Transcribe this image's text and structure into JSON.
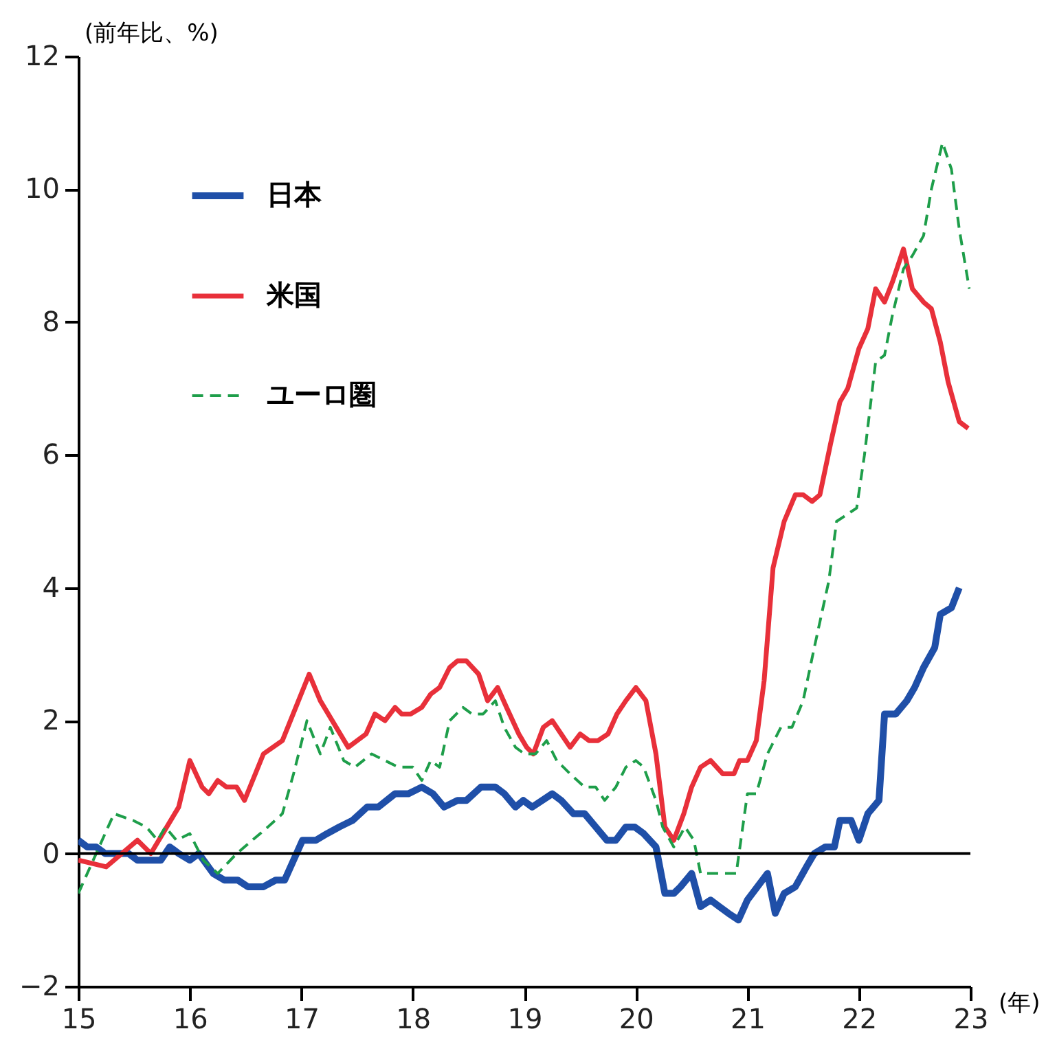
{
  "chart_data": {
    "type": "line",
    "ylabel": "(前年比、%)",
    "xlabel": "(年)",
    "xlim": [
      15,
      23
    ],
    "xticks": [
      15,
      16,
      17,
      18,
      19,
      20,
      21,
      22,
      23
    ],
    "ylim": [
      -2,
      12
    ],
    "yticks": [
      -2,
      0,
      2,
      4,
      6,
      8,
      10,
      12
    ],
    "grid": false,
    "legend": "top left",
    "marker": "none",
    "ref_lines": [
      {
        "axis": "y",
        "value": 0,
        "color": "#000000",
        "line_style": "solid"
      }
    ],
    "series": [
      {
        "name": "日本",
        "color": "#1f4fa8",
        "line_style": "solid",
        "x": [
          15.0,
          15.08,
          15.16,
          15.24,
          15.45,
          15.53,
          15.74,
          15.82,
          15.9,
          16.0,
          16.08,
          16.21,
          16.31,
          16.43,
          16.52,
          16.66,
          16.77,
          16.85,
          16.93,
          17.01,
          17.13,
          17.23,
          17.34,
          17.46,
          17.59,
          17.69,
          17.84,
          17.96,
          18.08,
          18.18,
          18.28,
          18.4,
          18.48,
          18.61,
          18.74,
          18.82,
          18.92,
          18.99,
          19.07,
          19.25,
          19.33,
          19.44,
          19.54,
          19.64,
          19.74,
          19.82,
          19.91,
          19.99,
          20.07,
          20.18,
          20.26,
          20.34,
          20.4,
          20.5,
          20.58,
          20.67,
          20.75,
          20.83,
          20.92,
          21.0,
          21.18,
          21.25,
          21.33,
          21.43,
          21.53,
          21.6,
          21.7,
          21.78,
          21.83,
          21.93,
          22.0,
          22.08,
          22.18,
          22.23,
          22.33,
          22.43,
          22.5,
          22.58,
          22.68,
          22.73,
          22.83,
          22.9
        ],
        "values": [
          0.2,
          0.1,
          0.1,
          0.0,
          0.0,
          -0.1,
          -0.1,
          0.1,
          0.0,
          -0.1,
          0.0,
          -0.3,
          -0.4,
          -0.4,
          -0.5,
          -0.5,
          -0.4,
          -0.4,
          -0.1,
          0.2,
          0.2,
          0.3,
          0.4,
          0.5,
          0.7,
          0.7,
          0.9,
          0.9,
          1.0,
          0.9,
          0.7,
          0.8,
          0.8,
          1.0,
          1.0,
          0.9,
          0.7,
          0.8,
          0.7,
          0.9,
          0.8,
          0.6,
          0.6,
          0.4,
          0.2,
          0.2,
          0.4,
          0.4,
          0.3,
          0.1,
          -0.6,
          -0.6,
          -0.5,
          -0.3,
          -0.8,
          -0.7,
          -0.8,
          -0.9,
          -1.0,
          -0.7,
          -0.3,
          -0.9,
          -0.6,
          -0.5,
          -0.2,
          0.0,
          0.1,
          0.1,
          0.5,
          0.5,
          0.2,
          0.6,
          0.8,
          2.1,
          2.1,
          2.3,
          2.5,
          2.8,
          3.1,
          3.6,
          3.7,
          4.0
        ]
      },
      {
        "name": "米国",
        "color": "#e8303a",
        "line_style": "solid",
        "x": [
          15.0,
          15.25,
          15.53,
          15.65,
          15.9,
          16.0,
          16.11,
          16.17,
          16.25,
          16.33,
          16.42,
          16.49,
          16.66,
          16.83,
          17.07,
          17.17,
          17.42,
          17.58,
          17.66,
          17.75,
          17.84,
          17.9,
          17.98,
          18.08,
          18.16,
          18.24,
          18.33,
          18.4,
          18.48,
          18.59,
          18.67,
          18.76,
          18.84,
          18.95,
          19.02,
          19.08,
          19.17,
          19.25,
          19.33,
          19.41,
          19.5,
          19.58,
          19.66,
          19.75,
          19.83,
          19.91,
          20.0,
          20.09,
          20.18,
          20.26,
          20.34,
          20.43,
          20.5,
          20.58,
          20.67,
          20.78,
          20.88,
          20.93,
          21.0,
          21.08,
          21.15,
          21.23,
          21.33,
          21.43,
          21.5,
          21.58,
          21.65,
          21.75,
          21.83,
          21.9,
          22.0,
          22.08,
          22.15,
          22.23,
          22.3,
          22.4,
          22.48,
          22.58,
          22.65,
          22.73,
          22.8,
          22.9,
          22.98
        ],
        "values": [
          -0.1,
          -0.2,
          0.2,
          0.0,
          0.7,
          1.4,
          1.0,
          0.9,
          1.1,
          1.0,
          1.0,
          0.8,
          1.5,
          1.7,
          2.7,
          2.3,
          1.6,
          1.8,
          2.1,
          2.0,
          2.2,
          2.1,
          2.1,
          2.2,
          2.4,
          2.5,
          2.8,
          2.9,
          2.9,
          2.7,
          2.3,
          2.5,
          2.2,
          1.8,
          1.6,
          1.5,
          1.9,
          2.0,
          1.8,
          1.6,
          1.8,
          1.7,
          1.7,
          1.8,
          2.1,
          2.3,
          2.5,
          2.3,
          1.5,
          0.4,
          0.2,
          0.6,
          1.0,
          1.3,
          1.4,
          1.2,
          1.2,
          1.4,
          1.4,
          1.7,
          2.6,
          4.3,
          5.0,
          5.4,
          5.4,
          5.3,
          5.4,
          6.2,
          6.8,
          7.0,
          7.6,
          7.9,
          8.5,
          8.3,
          8.6,
          9.1,
          8.5,
          8.3,
          8.2,
          7.7,
          7.1,
          6.5,
          6.4
        ]
      },
      {
        "name": "ユーロ圏",
        "color": "#1e9e4a",
        "line_style": "dashed",
        "x": [
          15.0,
          15.16,
          15.32,
          15.49,
          15.61,
          15.71,
          15.78,
          15.88,
          16.0,
          16.12,
          16.25,
          16.42,
          16.56,
          16.7,
          16.83,
          16.93,
          17.05,
          17.17,
          17.26,
          17.38,
          17.48,
          17.63,
          17.75,
          17.87,
          18.0,
          18.08,
          18.16,
          18.24,
          18.33,
          18.45,
          18.53,
          18.63,
          18.74,
          18.82,
          18.92,
          19.0,
          19.1,
          19.2,
          19.29,
          19.41,
          19.54,
          19.64,
          19.72,
          19.82,
          19.91,
          20.0,
          20.07,
          20.18,
          20.24,
          20.34,
          20.44,
          20.52,
          20.58,
          20.7,
          20.9,
          21.0,
          21.08,
          21.18,
          21.3,
          21.4,
          21.5,
          21.6,
          21.73,
          21.8,
          21.98,
          22.05,
          22.15,
          22.23,
          22.3,
          22.4,
          22.48,
          22.58,
          22.65,
          22.75,
          22.83,
          22.9,
          22.99
        ],
        "values": [
          -0.6,
          0.0,
          0.6,
          0.5,
          0.4,
          0.2,
          0.4,
          0.2,
          0.3,
          -0.1,
          -0.3,
          0.0,
          0.2,
          0.4,
          0.6,
          1.2,
          2.0,
          1.5,
          1.9,
          1.4,
          1.3,
          1.5,
          1.4,
          1.3,
          1.3,
          1.1,
          1.4,
          1.3,
          2.0,
          2.2,
          2.1,
          2.1,
          2.3,
          1.9,
          1.6,
          1.5,
          1.5,
          1.7,
          1.4,
          1.2,
          1.0,
          1.0,
          0.8,
          1.0,
          1.3,
          1.4,
          1.3,
          0.8,
          0.4,
          0.1,
          0.4,
          0.2,
          -0.3,
          -0.3,
          -0.3,
          0.9,
          0.9,
          1.5,
          1.9,
          1.9,
          2.3,
          3.1,
          4.1,
          5.0,
          5.2,
          6.0,
          7.4,
          7.5,
          8.1,
          8.8,
          9.0,
          9.3,
          10.0,
          10.7,
          10.3,
          9.4,
          8.5
        ]
      }
    ]
  }
}
